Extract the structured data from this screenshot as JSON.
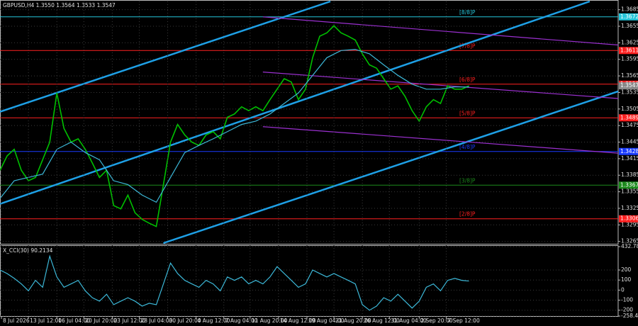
{
  "chart_data": [
    {
      "type": "line",
      "title": "GBPUSD,H4  1.3550 1.3564 1.3533 1.3547",
      "x": [
        0,
        1,
        2,
        3,
        4,
        5,
        6,
        7,
        8,
        9,
        10,
        11,
        12,
        13,
        14,
        15,
        16,
        17,
        18,
        19,
        20,
        21,
        22,
        23,
        24,
        25,
        26,
        27,
        28,
        29,
        30,
        31,
        32,
        33,
        34,
        35,
        36,
        37,
        38,
        39,
        40,
        41,
        42,
        43,
        44,
        45,
        46,
        47,
        48,
        49,
        50,
        51,
        52,
        53,
        54,
        55,
        56,
        57,
        58,
        59,
        60,
        61,
        62,
        63,
        64,
        65,
        66
      ],
      "xlim": [
        0,
        87
      ],
      "ylim": [
        1.3262,
        1.37
      ],
      "yticks": [
        1.3685,
        1.3655,
        1.3625,
        1.3595,
        1.3565,
        1.3535,
        1.3505,
        1.3475,
        1.3445,
        1.3415,
        1.3385,
        1.3355,
        1.3325,
        1.3295,
        1.3265
      ],
      "grid": true,
      "last_price_tag": true,
      "series": [
        {
          "color": "#00c000",
          "values": [
            1.3394,
            1.342,
            1.3432,
            1.3394,
            1.3375,
            1.3381,
            1.3413,
            1.3445,
            1.3534,
            1.347,
            1.3445,
            1.3451,
            1.3432,
            1.3407,
            1.3381,
            1.3394,
            1.333,
            1.3324,
            1.3349,
            1.3317,
            1.3305,
            1.3298,
            1.3292,
            1.3368,
            1.3445,
            1.3477,
            1.3458,
            1.3445,
            1.3439,
            1.3458,
            1.3464,
            1.3451,
            1.349,
            1.3496,
            1.3509,
            1.3502,
            1.3509,
            1.3502,
            1.3522,
            1.3541,
            1.356,
            1.3554,
            1.3522,
            1.3541,
            1.3598,
            1.3637,
            1.3643,
            1.3656,
            1.3643,
            1.3637,
            1.363,
            1.3605,
            1.3585,
            1.3579,
            1.356,
            1.3541,
            1.3547,
            1.3528,
            1.3502,
            1.3483,
            1.3509,
            1.3522,
            1.3515,
            1.3547,
            1.3541,
            1.3541,
            1.3547
          ]
        },
        {
          "color": "#3cb8d8",
          "x": [
            0,
            2,
            4,
            6,
            8,
            10,
            12,
            14,
            16,
            18,
            20,
            22,
            24,
            26,
            28,
            30,
            32,
            34,
            36,
            38,
            40,
            42,
            44,
            46,
            48,
            50,
            52,
            54,
            56,
            58,
            60,
            62,
            64,
            66
          ],
          "values": [
            1.3343,
            1.3375,
            1.3381,
            1.3387,
            1.3432,
            1.3445,
            1.3426,
            1.3413,
            1.3375,
            1.3368,
            1.3349,
            1.3336,
            1.3381,
            1.3426,
            1.3439,
            1.3451,
            1.3464,
            1.3477,
            1.3483,
            1.3496,
            1.3515,
            1.3534,
            1.3566,
            1.3598,
            1.3611,
            1.3613,
            1.3605,
            1.3585,
            1.3566,
            1.355,
            1.3541,
            1.3541,
            1.3545,
            1.3545
          ]
        }
      ],
      "levels": [
        {
          "value": 1.3672,
          "label": "[8/8]P",
          "color": "#26c6da"
        },
        {
          "value": 1.3611,
          "label": "[7/8]P",
          "color": "#ff2020"
        },
        {
          "value": 1.355,
          "value_label": "1.3550",
          "label": "[6/8]P",
          "color": "#ff2020"
        },
        {
          "value": 1.3489,
          "label": "[5/8]P",
          "color": "#ff2020"
        },
        {
          "value": 1.3428,
          "label": "[4/8]P",
          "color": "#1a3cff"
        },
        {
          "value": 1.3367,
          "label": "[3/8]P",
          "color": "#1c8a1c"
        },
        {
          "value": 1.3306,
          "label": "[2/8]P",
          "color": "#ff2020"
        }
      ],
      "trendlines": [
        {
          "color": "#1ea0e6",
          "x": [
            0,
            46.5
          ],
          "values": [
            1.35,
            1.37
          ]
        },
        {
          "color": "#1ea0e6",
          "x": [
            0,
            83
          ],
          "values": [
            1.3333,
            1.37
          ]
        },
        {
          "color": "#1ea0e6",
          "x": [
            23,
            87
          ],
          "values": [
            1.3262,
            1.3537
          ]
        },
        {
          "color": "#9b30d0",
          "x": [
            37,
            87
          ],
          "values": [
            1.3672,
            1.3621
          ]
        },
        {
          "color": "#9b30d0",
          "x": [
            37,
            87
          ],
          "values": [
            1.3572,
            1.3524
          ]
        },
        {
          "color": "#9b30d0",
          "x": [
            37,
            87
          ],
          "values": [
            1.3473,
            1.3425
          ]
        }
      ]
    },
    {
      "type": "line",
      "title": "X_CCI(30) 90.2134",
      "x": [
        0,
        1,
        2,
        3,
        4,
        5,
        6,
        7,
        8,
        9,
        10,
        11,
        12,
        13,
        14,
        15,
        16,
        17,
        18,
        19,
        20,
        21,
        22,
        23,
        24,
        25,
        26,
        27,
        28,
        29,
        30,
        31,
        32,
        33,
        34,
        35,
        36,
        37,
        38,
        39,
        40,
        41,
        42,
        43,
        44,
        45,
        46,
        47,
        48,
        49,
        50,
        51,
        52,
        53,
        54,
        55,
        56,
        57,
        58,
        59,
        60,
        61,
        62,
        63,
        64,
        65,
        66
      ],
      "xlim": [
        0,
        87
      ],
      "ylim": [
        -258.4977,
        432.788
      ],
      "yticks": [
        432.788,
        200,
        100,
        0,
        -100,
        -200,
        -258.4977
      ],
      "xticks": [
        {
          "value": 0.2,
          "label": "8 Jul 2026"
        },
        {
          "value": 4,
          "label": "13 Jul 12:00"
        },
        {
          "value": 8,
          "label": "16 Jul 04:00"
        },
        {
          "value": 11.8,
          "label": "20 Jul 20:00"
        },
        {
          "value": 15.8,
          "label": "23 Jul 12:00"
        },
        {
          "value": 19.6,
          "label": "28 Jul 04:00"
        },
        {
          "value": 23.6,
          "label": "30 Jul 20:00"
        },
        {
          "value": 27.6,
          "label": "4 Aug 12:00"
        },
        {
          "value": 31.5,
          "label": "7 Aug 04:00"
        },
        {
          "value": 35.2,
          "label": "11 Aug 20:00"
        },
        {
          "value": 39.2,
          "label": "14 Aug 12:00"
        },
        {
          "value": 43.2,
          "label": "19 Aug 04:00"
        },
        {
          "value": 47,
          "label": "21 Aug 20:00"
        },
        {
          "value": 51,
          "label": "26 Aug 12:00"
        },
        {
          "value": 54.8,
          "label": "31 Aug 04:00"
        },
        {
          "value": 59,
          "label": "2 Sep 20:00"
        },
        {
          "value": 62.8,
          "label": "7 Sep 12:00"
        }
      ],
      "grid": true,
      "series": [
        {
          "color": "#3cb8d8",
          "values": [
            200,
            165,
            117,
            62,
            -7,
            97,
            28,
            338,
            131,
            28,
            62,
            97,
            -7,
            -76,
            -110,
            -41,
            -145,
            -110,
            -76,
            -110,
            -159,
            -131,
            -145,
            62,
            269,
            165,
            97,
            62,
            28,
            97,
            62,
            -7,
            131,
            97,
            131,
            62,
            97,
            62,
            131,
            234,
            165,
            97,
            28,
            62,
            200,
            165,
            131,
            165,
            131,
            97,
            62,
            -145,
            -200,
            -159,
            -76,
            -110,
            -41,
            -110,
            -179,
            -110,
            28,
            62,
            -7,
            97,
            117,
            97,
            90.2134
          ]
        }
      ]
    }
  ]
}
